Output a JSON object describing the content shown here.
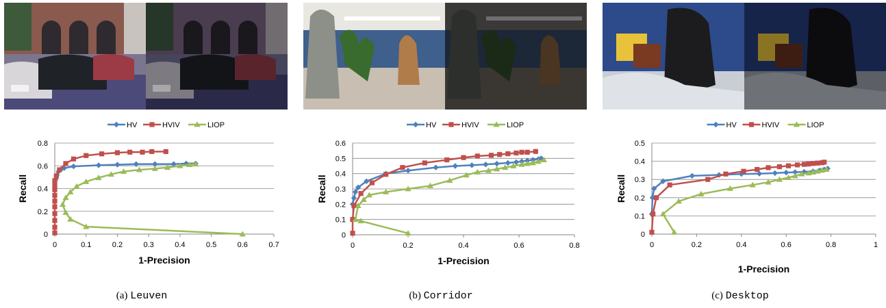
{
  "figure": {
    "panels": [
      {
        "caption_label": "(a)",
        "caption_name": "Leuven"
      },
      {
        "caption_label": "(b)",
        "caption_name": "Corridor"
      },
      {
        "caption_label": "(c)",
        "caption_name": "Desktop"
      }
    ]
  },
  "chart_data": [
    {
      "type": "line",
      "xlabel": "1-Precision",
      "ylabel": "Recall",
      "xlim": [
        0,
        0.7
      ],
      "ylim": [
        0,
        0.8
      ],
      "xticks": [
        0,
        0.1,
        0.2,
        0.3,
        0.4,
        0.5,
        0.6,
        0.7
      ],
      "yticks": [
        0,
        0.2,
        0.4,
        0.6,
        0.8
      ],
      "grid": "horizontal",
      "legend_position": "top",
      "series": [
        {
          "name": "HV",
          "color": "#4f81bd",
          "marker": "diamond",
          "x": [
            0,
            0.003,
            0.007,
            0.012,
            0.02,
            0.03,
            0.06,
            0.14,
            0.2,
            0.26,
            0.32,
            0.38,
            0.42,
            0.45
          ],
          "y": [
            0.4,
            0.48,
            0.52,
            0.55,
            0.57,
            0.58,
            0.595,
            0.605,
            0.61,
            0.615,
            0.615,
            0.615,
            0.62,
            0.62
          ]
        },
        {
          "name": "HVIV",
          "color": "#c0504d",
          "marker": "square",
          "x": [
            0,
            0,
            0,
            0,
            0,
            0,
            0,
            0,
            0,
            0,
            0.005,
            0.015,
            0.035,
            0.06,
            0.1,
            0.15,
            0.2,
            0.24,
            0.28,
            0.31,
            0.355
          ],
          "y": [
            0.01,
            0.06,
            0.12,
            0.18,
            0.24,
            0.29,
            0.34,
            0.39,
            0.43,
            0.47,
            0.51,
            0.565,
            0.62,
            0.66,
            0.69,
            0.705,
            0.715,
            0.72,
            0.72,
            0.725,
            0.725
          ]
        },
        {
          "name": "LIOP",
          "color": "#9bbb59",
          "marker": "triangle",
          "x": [
            0.6,
            0.1,
            0.05,
            0.035,
            0.025,
            0.035,
            0.05,
            0.07,
            0.1,
            0.14,
            0.18,
            0.22,
            0.27,
            0.32,
            0.36,
            0.4,
            0.43,
            0.45
          ],
          "y": [
            0.0,
            0.065,
            0.13,
            0.19,
            0.26,
            0.32,
            0.37,
            0.42,
            0.46,
            0.495,
            0.525,
            0.55,
            0.565,
            0.575,
            0.585,
            0.6,
            0.61,
            0.615
          ]
        }
      ]
    },
    {
      "type": "line",
      "xlabel": "1-Precision",
      "ylabel": "Recall",
      "xlim": [
        0,
        0.8
      ],
      "ylim": [
        0,
        0.6
      ],
      "xticks": [
        0,
        0.2,
        0.4,
        0.6,
        0.8
      ],
      "yticks": [
        0,
        0.1,
        0.2,
        0.3,
        0.4,
        0.5,
        0.6
      ],
      "grid": "horizontal",
      "legend_position": "top",
      "series": [
        {
          "name": "HV",
          "color": "#4f81bd",
          "marker": "diamond",
          "x": [
            0,
            0.005,
            0.01,
            0.02,
            0.05,
            0.12,
            0.2,
            0.3,
            0.37,
            0.43,
            0.48,
            0.52,
            0.56,
            0.59,
            0.61,
            0.63,
            0.65,
            0.67,
            0.68
          ],
          "y": [
            0.2,
            0.24,
            0.28,
            0.31,
            0.35,
            0.4,
            0.42,
            0.44,
            0.45,
            0.455,
            0.46,
            0.465,
            0.47,
            0.475,
            0.48,
            0.485,
            0.49,
            0.495,
            0.5
          ]
        },
        {
          "name": "HVIV",
          "color": "#c0504d",
          "marker": "square",
          "x": [
            0,
            0,
            0.005,
            0.03,
            0.07,
            0.12,
            0.18,
            0.26,
            0.34,
            0.4,
            0.45,
            0.5,
            0.53,
            0.56,
            0.59,
            0.61,
            0.63,
            0.66
          ],
          "y": [
            0.01,
            0.1,
            0.19,
            0.27,
            0.34,
            0.395,
            0.44,
            0.47,
            0.49,
            0.505,
            0.515,
            0.52,
            0.525,
            0.53,
            0.535,
            0.54,
            0.54,
            0.545
          ]
        },
        {
          "name": "LIOP",
          "color": "#9bbb59",
          "marker": "triangle",
          "x": [
            0.2,
            0.03,
            0.01,
            0.02,
            0.04,
            0.06,
            0.12,
            0.2,
            0.28,
            0.35,
            0.41,
            0.45,
            0.49,
            0.52,
            0.55,
            0.58,
            0.61,
            0.63,
            0.65,
            0.67,
            0.69
          ],
          "y": [
            0.01,
            0.09,
            0.1,
            0.19,
            0.23,
            0.26,
            0.28,
            0.3,
            0.32,
            0.355,
            0.39,
            0.41,
            0.42,
            0.43,
            0.44,
            0.45,
            0.46,
            0.465,
            0.47,
            0.48,
            0.49
          ]
        }
      ]
    },
    {
      "type": "line",
      "xlabel": "1-Precision",
      "ylabel": "Recall",
      "xlim": [
        0,
        1
      ],
      "ylim": [
        0,
        0.5
      ],
      "xticks": [
        0,
        0.2,
        0.4,
        0.6,
        0.8,
        1
      ],
      "yticks": [
        0,
        0.1,
        0.2,
        0.3,
        0.4,
        0.5
      ],
      "grid": "horizontal",
      "legend_position": "top",
      "series": [
        {
          "name": "HV",
          "color": "#4f81bd",
          "marker": "diamond",
          "x": [
            0,
            0.003,
            0.01,
            0.05,
            0.18,
            0.3,
            0.4,
            0.48,
            0.55,
            0.6,
            0.64,
            0.68,
            0.72,
            0.75,
            0.77,
            0.785
          ],
          "y": [
            0.11,
            0.2,
            0.25,
            0.29,
            0.32,
            0.325,
            0.33,
            0.332,
            0.335,
            0.338,
            0.34,
            0.342,
            0.345,
            0.35,
            0.355,
            0.36
          ]
        },
        {
          "name": "HVIV",
          "color": "#c0504d",
          "marker": "square",
          "x": [
            0,
            0.005,
            0.02,
            0.08,
            0.25,
            0.33,
            0.41,
            0.47,
            0.52,
            0.57,
            0.61,
            0.65,
            0.68,
            0.7,
            0.72,
            0.74,
            0.76,
            0.77
          ],
          "y": [
            0.01,
            0.11,
            0.2,
            0.27,
            0.3,
            0.33,
            0.345,
            0.355,
            0.365,
            0.37,
            0.375,
            0.38,
            0.383,
            0.385,
            0.388,
            0.39,
            0.392,
            0.395
          ]
        },
        {
          "name": "LIOP",
          "color": "#9bbb59",
          "marker": "triangle",
          "x": [
            0.1,
            0.05,
            0.12,
            0.22,
            0.35,
            0.45,
            0.52,
            0.57,
            0.61,
            0.64,
            0.67,
            0.7,
            0.72,
            0.74,
            0.76,
            0.78
          ],
          "y": [
            0.01,
            0.11,
            0.18,
            0.22,
            0.25,
            0.27,
            0.285,
            0.3,
            0.31,
            0.32,
            0.33,
            0.335,
            0.34,
            0.345,
            0.35,
            0.355
          ]
        }
      ]
    }
  ]
}
